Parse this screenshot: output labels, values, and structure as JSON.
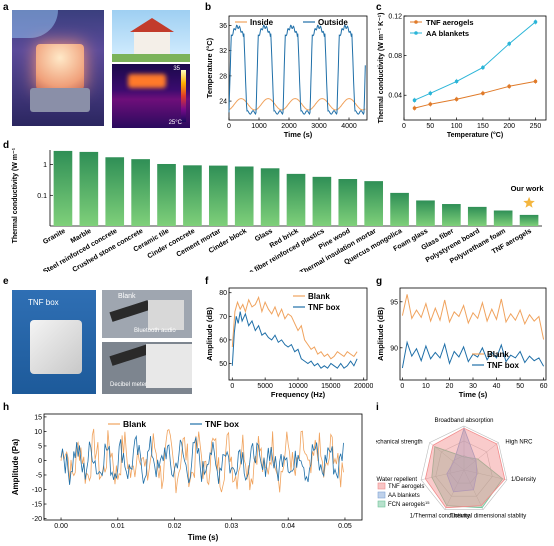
{
  "panel_labels": [
    "a",
    "b",
    "c",
    "d",
    "e",
    "f",
    "g",
    "h",
    "i"
  ],
  "colors": {
    "orange": "#f0a35e",
    "blue": "#1f6fa8",
    "cyan": "#2bb5d8",
    "darkorange": "#e07b2a",
    "star": "#f4b63f"
  },
  "photos": {
    "thermal_scale_max": "35",
    "thermal_scale_min": "25°C",
    "e_box_label": "TNF box",
    "e_blank_label": "Blank",
    "e_bt_label": "Bluetooth audio",
    "e_meter_label": "Decibel meter"
  },
  "chart_data": [
    {
      "id": "b",
      "type": "line",
      "xlabel": "Time (s)",
      "ylabel": "Temperature (°C)",
      "xlim": [
        0,
        4600
      ],
      "ylim": [
        21,
        37.5
      ],
      "xticks": [
        0,
        1000,
        2000,
        3000,
        4000
      ],
      "yticks": [
        24,
        28,
        32,
        36
      ],
      "legend": [
        "Inside",
        "Outside"
      ],
      "series": [
        {
          "name": "Inside",
          "color": "#f0a35e",
          "period": 900,
          "low": 22.6,
          "high": 24.4
        },
        {
          "name": "Outside",
          "color": "#1f6fa8",
          "period": 900,
          "low": 22.2,
          "high": 35.8
        }
      ]
    },
    {
      "id": "c",
      "type": "line",
      "xlabel": "Temperature (°C)",
      "ylabel": "Thermal conductivity (W m⁻¹ K⁻¹)",
      "xlim": [
        0,
        270
      ],
      "ylim": [
        0.015,
        0.12
      ],
      "xticks": [
        0,
        50,
        100,
        150,
        200,
        250
      ],
      "yticks": [
        0.04,
        0.08,
        0.12
      ],
      "series": [
        {
          "name": "TNF aerogels",
          "color": "#e07b2a",
          "x": [
            20,
            50,
            100,
            150,
            200,
            250
          ],
          "y": [
            0.027,
            0.031,
            0.036,
            0.042,
            0.049,
            0.054
          ]
        },
        {
          "name": "AA blankets",
          "color": "#2bb5d8",
          "x": [
            20,
            50,
            100,
            150,
            200,
            250
          ],
          "y": [
            0.035,
            0.042,
            0.054,
            0.068,
            0.092,
            0.114
          ]
        }
      ]
    },
    {
      "id": "d",
      "type": "bar",
      "ylabel": "Thermal conductivity (W m⁻¹ K⁻¹)",
      "ylog": true,
      "ylim": [
        0.01,
        3
      ],
      "yticks": [
        {
          "v": 1,
          "label": "1"
        },
        {
          "v": 0.1,
          "label": "0.1"
        }
      ],
      "categories": [
        "Granite",
        "Marble",
        "Steel reinforced concrete",
        "Crushed stone concrete",
        "Ceramic tile",
        "Cinder concrete",
        "Cement mortar",
        "Cinder block",
        "Glass",
        "Red brick",
        "Glass fiber reinforced plastics",
        "Pine wood",
        "Thermal insulation mortar",
        "Quercus mongolica",
        "Foam glass",
        "Glass fiber",
        "Polystyrene board",
        "Polyurethane foam",
        "TNF aerogels"
      ],
      "values": [
        2.8,
        2.6,
        1.74,
        1.51,
        1.05,
        0.95,
        0.93,
        0.87,
        0.76,
        0.5,
        0.4,
        0.34,
        0.29,
        0.12,
        0.068,
        0.052,
        0.042,
        0.032,
        0.023
      ],
      "annotation": "Our work"
    },
    {
      "id": "f",
      "type": "line",
      "xlabel": "Frequency (Hz)",
      "ylabel": "Amplitude (dB)",
      "xlim": [
        -500,
        20500
      ],
      "ylim": [
        43,
        82
      ],
      "xticks": [
        0,
        5000,
        10000,
        15000,
        20000
      ],
      "yticks": [
        50,
        60,
        70,
        80
      ],
      "legend": [
        "Blank",
        "TNF box"
      ],
      "series": [
        {
          "name": "Blank",
          "color": "#f0a35e",
          "x": [
            0,
            400,
            800,
            1200,
            1600,
            2000,
            2500,
            3000,
            3500,
            4000,
            4500,
            5000,
            5500,
            6000,
            6500,
            7000,
            7500,
            8000,
            8500,
            9000,
            9500,
            10000,
            10500,
            11000,
            11500,
            12000,
            12500,
            13000,
            13500,
            14000,
            14500,
            15000,
            15500,
            16000,
            16500,
            17000,
            17500,
            18000,
            18500,
            19000
          ],
          "y": [
            57,
            72,
            76,
            73,
            75,
            72,
            77,
            74,
            75,
            78,
            72,
            76,
            73,
            71,
            74,
            70,
            73,
            69,
            71,
            70,
            67,
            64,
            66,
            60,
            58,
            56,
            57,
            54,
            55,
            53,
            54,
            52,
            53,
            55,
            54,
            53,
            55,
            54,
            53,
            55
          ]
        },
        {
          "name": "TNF box",
          "color": "#1f6fa8",
          "x": [
            0,
            300,
            600,
            900,
            1200,
            1500,
            2000,
            2500,
            3000,
            3500,
            4000,
            4500,
            5000,
            5500,
            6000,
            6500,
            7000,
            7500,
            8000,
            8500,
            9000,
            9500,
            10000,
            10500,
            11000,
            11500,
            12000,
            12500,
            13000,
            13500,
            14000,
            14500,
            15000,
            15500,
            16000,
            16500,
            17000,
            17500,
            18000,
            18500,
            19000
          ],
          "y": [
            49,
            63,
            70,
            67,
            72,
            68,
            71,
            66,
            68,
            64,
            66,
            62,
            63,
            61,
            60,
            62,
            59,
            60,
            58,
            57,
            58,
            55,
            56,
            52,
            51,
            50,
            51,
            49,
            50,
            48,
            49,
            48,
            50,
            49,
            48,
            50,
            48,
            49,
            51,
            49,
            52
          ]
        }
      ]
    },
    {
      "id": "g",
      "type": "line",
      "xlabel": "Time (s)",
      "ylabel": "Amplitude (dB)",
      "xlim": [
        -1,
        61
      ],
      "ylim": [
        86.5,
        96.5
      ],
      "xticks": [
        0,
        10,
        20,
        30,
        40,
        50,
        60
      ],
      "yticks": [
        90,
        95
      ],
      "legend": [
        "Blank",
        "TNF box"
      ],
      "series": [
        {
          "name": "Blank",
          "color": "#f0a35e",
          "x": [
            0,
            2,
            4,
            6,
            8,
            10,
            12,
            14,
            16,
            18,
            20,
            22,
            24,
            26,
            28,
            30,
            32,
            34,
            36,
            38,
            40,
            42,
            44,
            46,
            48,
            50,
            52,
            54,
            56,
            58,
            60
          ],
          "y": [
            93.5,
            95.8,
            93.2,
            94.1,
            93.3,
            94.8,
            92.9,
            94.3,
            93.0,
            95.2,
            92.8,
            93.9,
            93.4,
            94.6,
            92.7,
            93.8,
            93.2,
            94.9,
            92.9,
            94.2,
            93.1,
            95.3,
            92.8,
            93.7,
            93.0,
            94.1,
            92.6,
            93.6,
            92.9,
            93.4,
            90.9
          ]
        },
        {
          "name": "TNF box",
          "color": "#1f6fa8",
          "x": [
            0,
            2,
            4,
            6,
            8,
            10,
            12,
            14,
            16,
            18,
            20,
            22,
            24,
            26,
            28,
            30,
            32,
            34,
            36,
            38,
            40,
            42,
            44,
            46,
            48,
            50,
            52,
            54,
            56,
            58,
            60
          ],
          "y": [
            87.8,
            90.6,
            89.1,
            89.9,
            88.6,
            90.2,
            88.8,
            89.5,
            88.9,
            90.4,
            88.3,
            89.6,
            89.0,
            90.1,
            88.5,
            89.3,
            89.0,
            90.0,
            88.7,
            89.5,
            88.9,
            90.3,
            88.5,
            89.2,
            88.9,
            89.6,
            88.4,
            89.1,
            88.6,
            88.9,
            88.0
          ]
        }
      ]
    },
    {
      "id": "h",
      "type": "line",
      "xlabel": "Time (s)",
      "ylabel": "Amplitude (Pa)",
      "xlim": [
        -0.003,
        0.053
      ],
      "ylim": [
        -20.5,
        16
      ],
      "xticks": [
        {
          "v": 0,
          "label": "0.00"
        },
        {
          "v": 0.01,
          "label": "0.01"
        },
        {
          "v": 0.02,
          "label": "0.02"
        },
        {
          "v": 0.03,
          "label": "0.03"
        },
        {
          "v": 0.04,
          "label": "0.04"
        },
        {
          "v": 0.05,
          "label": "0.05"
        }
      ],
      "yticks": [
        -20,
        -15,
        -10,
        -5,
        0,
        5,
        10,
        15
      ],
      "legend": [
        "Blank",
        "TNF box"
      ],
      "series": [
        {
          "name": "Blank",
          "color": "#f0a35e",
          "amplitude": 10.5
        },
        {
          "name": "TNF box",
          "color": "#1f6fa8",
          "amplitude": 8
        }
      ]
    },
    {
      "id": "i",
      "type": "radar",
      "axes": [
        "Broadband absorption",
        "High NRC",
        "1/Density",
        "Thermal dimensional stablity",
        "1/Thermal conductivity",
        "Water repellent",
        "Mechanical strength"
      ],
      "series": [
        {
          "name": "TNF aerogels",
          "color": "#f28b8b",
          "values": [
            0.95,
            0.95,
            0.95,
            0.9,
            0.95,
            0.9,
            0.9
          ]
        },
        {
          "name": "AA blankets",
          "color": "#7fa3d6",
          "values": [
            0.95,
            0.35,
            0.3,
            0.5,
            0.55,
            0.4,
            0.3
          ]
        },
        {
          "name": "FCN aerogels",
          "sup": "15",
          "color": "#6fc49a",
          "values": [
            0.3,
            0.4,
            0.9,
            0.95,
            0.9,
            0.75,
            0.85
          ]
        }
      ]
    }
  ]
}
